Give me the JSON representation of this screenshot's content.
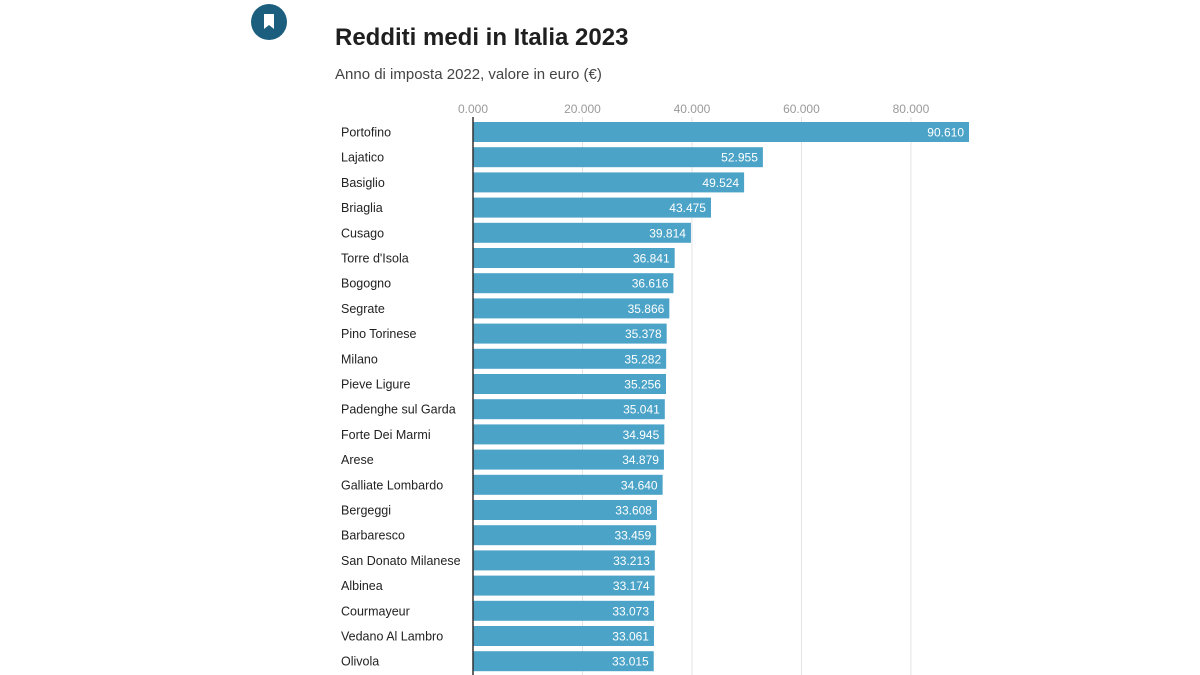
{
  "header": {
    "title": "Redditi medi in Italia 2023",
    "subtitle": "Anno di imposta 2022, valore in euro (€)"
  },
  "icons": {
    "bookmark": "bookmark-icon"
  },
  "colors": {
    "bar": "#4ba3c8",
    "bookmark_bg": "#1b5e7e",
    "grid": "#e3e3e3",
    "axis_text": "#9a9a9a"
  },
  "chart_data": {
    "type": "bar",
    "orientation": "horizontal",
    "title": "Redditi medi in Italia 2023",
    "subtitle": "Anno di imposta 2022, valore in euro (€)",
    "xlim": [
      0,
      90610
    ],
    "x_ticks": [
      0,
      20000,
      40000,
      60000,
      80000
    ],
    "x_tick_labels": [
      "0.000",
      "20.000",
      "40.000",
      "60.000",
      "80.000"
    ],
    "x_axis_position": "top",
    "grid": true,
    "categories": [
      "Portofino",
      "Lajatico",
      "Basiglio",
      "Briaglia",
      "Cusago",
      "Torre d'Isola",
      "Bogogno",
      "Segrate",
      "Pino Torinese",
      "Milano",
      "Pieve Ligure",
      "Padenghe sul Garda",
      "Forte Dei Marmi",
      "Arese",
      "Galliate Lombardo",
      "Bergeggi",
      "Barbaresco",
      "San Donato Milanese",
      "Albinea",
      "Courmayeur",
      "Vedano Al Lambro",
      "Olivola"
    ],
    "values": [
      90610,
      52955,
      49524,
      43475,
      39814,
      36841,
      36616,
      35866,
      35378,
      35282,
      35256,
      35041,
      34945,
      34879,
      34640,
      33608,
      33459,
      33213,
      33174,
      33073,
      33061,
      33015
    ],
    "value_labels": [
      "90.610",
      "52.955",
      "49.524",
      "43.475",
      "39.814",
      "36.841",
      "36.616",
      "35.866",
      "35.378",
      "35.282",
      "35.256",
      "35.041",
      "34.945",
      "34.879",
      "34.640",
      "33.608",
      "33.459",
      "33.213",
      "33.174",
      "33.073",
      "33.061",
      "33.015"
    ]
  }
}
